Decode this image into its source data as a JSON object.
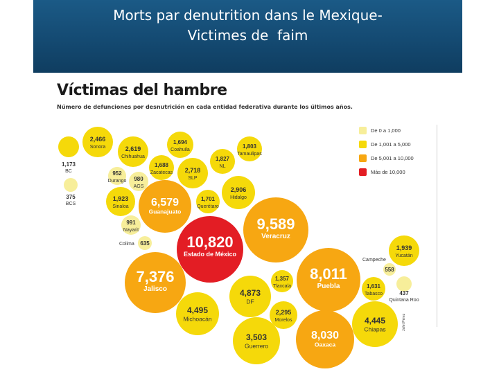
{
  "slide": {
    "title_line1": "Morts par denutrition dans le Mexique-",
    "title_line2": "Victimes de  faim"
  },
  "infographic": {
    "title": "Víctimas del hambre",
    "subtitle": "Número de defunciones por desnutrición en cada entidad federativa durante los últimos años.",
    "credit": "Jafet Pérez",
    "colors": {
      "pale": "#f7ee9a",
      "yellow": "#f5d90a",
      "orange": "#f7a712",
      "red": "#e31d24"
    },
    "legend": [
      {
        "label": "De 0 a 1,000",
        "color": "#f7ee9a"
      },
      {
        "label": "De 1,001 a 5,000",
        "color": "#f5d90a"
      },
      {
        "label": "De 5,001 a 10,000",
        "color": "#f7a712"
      },
      {
        "label": "Más de 10,000",
        "color": "#e31d24"
      }
    ],
    "states": [
      {
        "name": "Estado de México",
        "value": "10,820",
        "cat": "red"
      },
      {
        "name": "Veracruz",
        "value": "9,589",
        "cat": "orange"
      },
      {
        "name": "Guanajuato",
        "value": "6,579",
        "cat": "orange"
      },
      {
        "name": "Jalisco",
        "value": "7,376",
        "cat": "orange"
      },
      {
        "name": "Puebla",
        "value": "8,011",
        "cat": "orange"
      },
      {
        "name": "Oaxaca",
        "value": "8,030",
        "cat": "orange"
      },
      {
        "name": "DF",
        "value": "4,873",
        "cat": "yellow"
      },
      {
        "name": "Michoacán",
        "value": "4,495",
        "cat": "yellow"
      },
      {
        "name": "Chiapas",
        "value": "4,445",
        "cat": "yellow"
      },
      {
        "name": "Guerrero",
        "value": "3,503",
        "cat": "yellow"
      },
      {
        "name": "Hidalgo",
        "value": "2,906",
        "cat": "yellow"
      },
      {
        "name": "SLP",
        "value": "2,718",
        "cat": "yellow"
      },
      {
        "name": "Chihuahua",
        "value": "2,619",
        "cat": "yellow"
      },
      {
        "name": "Sonora",
        "value": "2,466",
        "cat": "yellow"
      },
      {
        "name": "Morelos",
        "value": "2,295",
        "cat": "yellow"
      },
      {
        "name": "Sinaloa",
        "value": "1,923",
        "cat": "yellow"
      },
      {
        "name": "Yucatán",
        "value": "1,939",
        "cat": "yellow"
      },
      {
        "name": "NL",
        "value": "1,827",
        "cat": "yellow"
      },
      {
        "name": "Tamaulipas",
        "value": "1,803",
        "cat": "yellow"
      },
      {
        "name": "Querétaro",
        "value": "1,701",
        "cat": "yellow"
      },
      {
        "name": "Coahuila",
        "value": "1,694",
        "cat": "yellow"
      },
      {
        "name": "Zacatecas",
        "value": "1,688",
        "cat": "yellow"
      },
      {
        "name": "Tabasco",
        "value": "1,631",
        "cat": "yellow"
      },
      {
        "name": "Tlaxcala",
        "value": "1,357",
        "cat": "yellow"
      },
      {
        "name": "BC",
        "value": "1,173",
        "cat": "yellow"
      },
      {
        "name": "Nayarit",
        "value": "991",
        "cat": "pale"
      },
      {
        "name": "AGS",
        "value": "980",
        "cat": "pale"
      },
      {
        "name": "Durango",
        "value": "952",
        "cat": "pale"
      },
      {
        "name": "Colima",
        "value": "635",
        "cat": "pale"
      },
      {
        "name": "Campeche",
        "value": "558",
        "cat": "pale"
      },
      {
        "name": "Quintana Roo",
        "value": "437",
        "cat": "pale"
      },
      {
        "name": "BCS",
        "value": "375",
        "cat": "pale"
      }
    ]
  }
}
